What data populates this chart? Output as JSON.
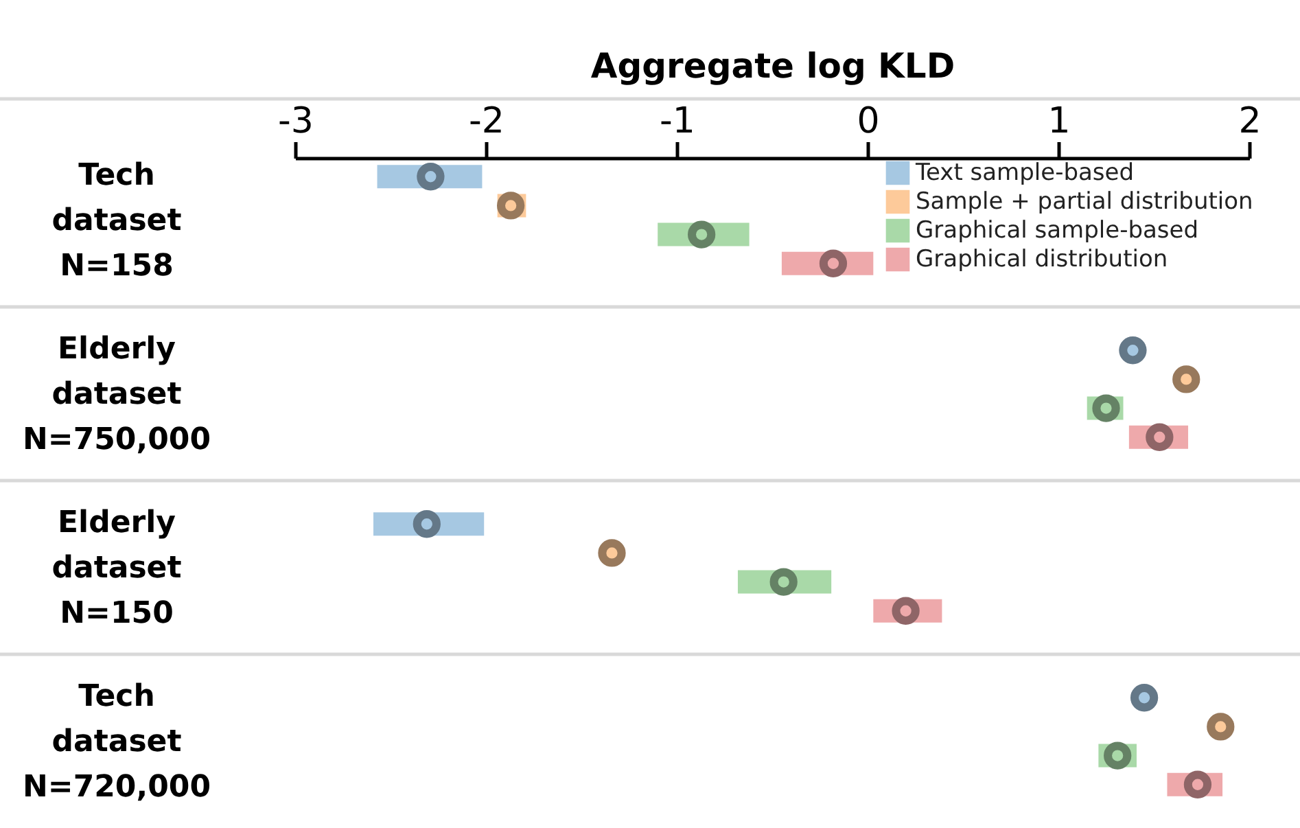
{
  "chart_data": {
    "type": "scatter",
    "orientation": "horizontal",
    "xlabel": "Aggregate log KLD",
    "categories": [
      "Tech\ndataset\nN=158",
      "Elderly\ndataset\nN=750,000",
      "Elderly\ndataset\nN=150",
      "Tech\ndataset\nN=720,000"
    ],
    "xlim": [
      -3,
      2
    ],
    "xticks": [
      -3,
      -2,
      -1,
      0,
      1,
      2
    ],
    "grid": "y",
    "legend": "top right",
    "marker": "circle",
    "series": [
      {
        "name": "Text sample-based",
        "color": "#a6c8e2",
        "values": [
          -2.29,
          1.39,
          -2.31,
          1.45
        ],
        "errors": [
          [
            -2.57,
            -2.02
          ],
          null,
          [
            -2.59,
            -2.01
          ],
          null
        ]
      },
      {
        "name": "Sample + partial distribution",
        "color": "#fdca9a",
        "values": [
          -1.87,
          1.67,
          -1.34,
          1.85
        ],
        "errors": [
          [
            -1.94,
            -1.79
          ],
          null,
          null,
          null
        ]
      },
      {
        "name": "Graphical sample-based",
        "color": "#a9d9a8",
        "values": [
          -0.87,
          1.25,
          -0.44,
          1.31
        ],
        "errors": [
          [
            -1.1,
            -0.62
          ],
          [
            1.15,
            1.34
          ],
          [
            -0.68,
            -0.19
          ],
          [
            1.21,
            1.41
          ]
        ]
      },
      {
        "name": "Graphical distribution",
        "color": "#eea9ab",
        "values": [
          -0.18,
          1.53,
          0.2,
          1.73
        ],
        "errors": [
          [
            -0.45,
            0.03
          ],
          [
            1.37,
            1.68
          ],
          [
            0.03,
            0.39
          ],
          [
            1.57,
            1.86
          ]
        ]
      }
    ]
  }
}
